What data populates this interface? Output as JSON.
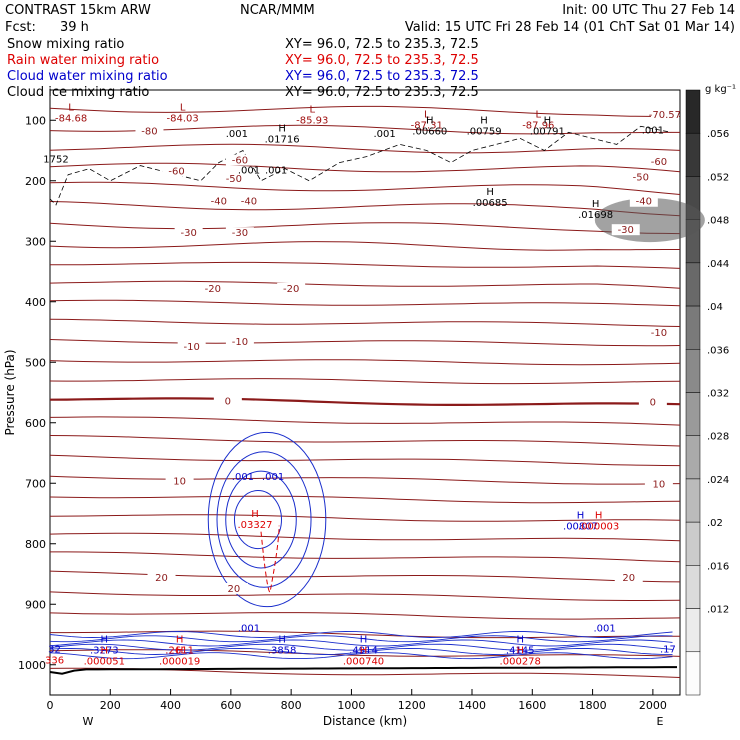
{
  "header": {
    "model": "CONTRAST 15km ARW",
    "center": "NCAR/MMM",
    "init": "Init: 00 UTC Thu 27 Feb 14",
    "fcst_label": "Fcst:",
    "fcst_value": "39 h",
    "valid": "Valid: 15 UTC Fri 28 Feb 14 (01 ChT Sat 01 Mar 14)"
  },
  "fields": [
    {
      "label": "Snow mixing ratio",
      "xy": "XY=   96.0, 72.5 to 235.3, 72.5",
      "color": "#000000"
    },
    {
      "label": "Rain water mixing ratio",
      "xy": "XY=   96.0, 72.5 to 235.3, 72.5",
      "color": "#dd0000"
    },
    {
      "label": "Cloud water mixing ratio",
      "xy": "XY=   96.0, 72.5 to 235.3, 72.5",
      "color": "#0000cc"
    },
    {
      "label": "Cloud ice mixing ratio",
      "xy": "XY=   96.0, 72.5 to 235.3, 72.5",
      "color": "#000000"
    }
  ],
  "colorbar": {
    "unit": "g kg⁻¹",
    "ticks": [
      ".056",
      ".052",
      ".048",
      ".044",
      ".04",
      ".036",
      ".032",
      ".028",
      ".024",
      ".02",
      ".016",
      ".012"
    ]
  },
  "chart_data": {
    "type": "cross-section contour",
    "xlabel": "Distance (km)",
    "ylabel": "Pressure (hPa)",
    "xlim": [
      0,
      2090
    ],
    "ylim": [
      1050,
      50
    ],
    "x_ticks": [
      0,
      200,
      400,
      600,
      800,
      1000,
      1200,
      1400,
      1600,
      1800,
      2000
    ],
    "y_ticks": [
      100,
      200,
      300,
      400,
      500,
      600,
      700,
      800,
      900,
      1000
    ],
    "x_end_labels": {
      "left": "W",
      "right": "E"
    },
    "temperature_contours": {
      "units": "C",
      "labels": [
        {
          "text": "-80",
          "x": 330,
          "p": 122
        },
        {
          "text": "-70.57",
          "x": 2040,
          "p": 95
        },
        {
          "text": "-60",
          "x": 420,
          "p": 188
        },
        {
          "text": "-60",
          "x": 630,
          "p": 170
        },
        {
          "text": "-60",
          "x": 2020,
          "p": 172
        },
        {
          "text": "-50",
          "x": 610,
          "p": 200
        },
        {
          "text": "-50",
          "x": 1960,
          "p": 198
        },
        {
          "text": "-40",
          "x": 560,
          "p": 238
        },
        {
          "text": "-40",
          "x": 660,
          "p": 238
        },
        {
          "text": "-40",
          "x": 1970,
          "p": 238
        },
        {
          "text": "-30",
          "x": 460,
          "p": 290
        },
        {
          "text": "-30",
          "x": 630,
          "p": 290
        },
        {
          "text": "-30",
          "x": 1910,
          "p": 285
        },
        {
          "text": "-20",
          "x": 540,
          "p": 382
        },
        {
          "text": "-20",
          "x": 800,
          "p": 382
        },
        {
          "text": "-10",
          "x": 470,
          "p": 478
        },
        {
          "text": "-10",
          "x": 630,
          "p": 470
        },
        {
          "text": "-10",
          "x": 2020,
          "p": 455
        },
        {
          "text": "0",
          "x": 590,
          "p": 568
        },
        {
          "text": "0",
          "x": 2000,
          "p": 570
        },
        {
          "text": "10",
          "x": 430,
          "p": 700
        },
        {
          "text": "10",
          "x": 2020,
          "p": 705
        },
        {
          "text": "20",
          "x": 370,
          "p": 860
        },
        {
          "text": "20",
          "x": 610,
          "p": 878
        },
        {
          "text": "20",
          "x": 1920,
          "p": 860
        }
      ]
    },
    "extrema": [
      {
        "kind": "L",
        "value": "-84.68",
        "x": 70,
        "p": 100,
        "color": "#a01010"
      },
      {
        "kind": "L",
        "value": "-84.03",
        "x": 440,
        "p": 100,
        "color": "#a01010"
      },
      {
        "kind": "L",
        "value": "-85.93",
        "x": 870,
        "p": 104,
        "color": "#a01010"
      },
      {
        "kind": "L",
        "value": "-87.31",
        "x": 1250,
        "p": 112,
        "color": "#a01010"
      },
      {
        "kind": "L",
        "value": "-87.96",
        "x": 1620,
        "p": 112,
        "color": "#a01010"
      },
      {
        "kind": "H",
        "value": ".01716",
        "x": 770,
        "p": 135,
        "color": "#000"
      },
      {
        "kind": "H",
        "value": ".00660",
        "x": 1260,
        "p": 122,
        "color": "#000"
      },
      {
        "kind": "H",
        "value": ".00759",
        "x": 1440,
        "p": 122,
        "color": "#000"
      },
      {
        "kind": "H",
        "value": ".00791",
        "x": 1650,
        "p": 122,
        "color": "#000"
      },
      {
        "kind": "H",
        "value": ".00685",
        "x": 1460,
        "p": 240,
        "color": "#000"
      },
      {
        "kind": "H",
        "value": ".01698",
        "x": 1810,
        "p": 260,
        "color": "#000"
      },
      {
        "kind": "H",
        "value": ".03327",
        "x": 680,
        "p": 772,
        "color": "#dd0000"
      },
      {
        "kind": "H",
        "value": ".00807",
        "x": 1760,
        "p": 775,
        "color": "#0000cc"
      },
      {
        "kind": "H",
        "value": ".000003",
        "x": 1820,
        "p": 775,
        "color": "#dd0000"
      },
      {
        "kind": "H",
        "value": ".3273",
        "x": 180,
        "p": 980,
        "color": "#0000cc"
      },
      {
        "kind": "H",
        "value": ".2611",
        "x": 430,
        "p": 980,
        "color": "#dd0000"
      },
      {
        "kind": "H",
        "value": ".3858",
        "x": 770,
        "p": 980,
        "color": "#0000cc"
      },
      {
        "kind": "H",
        "value": ".4914",
        "x": 1040,
        "p": 980,
        "color": "#0000cc"
      },
      {
        "kind": "H",
        "value": ".4145",
        "x": 1560,
        "p": 980,
        "color": "#0000cc"
      },
      {
        "kind": "H",
        "value": ".000051",
        "x": 180,
        "p": 998,
        "color": "#dd0000"
      },
      {
        "kind": "H",
        "value": ".000019",
        "x": 430,
        "p": 998,
        "color": "#dd0000"
      },
      {
        "kind": "H",
        "value": ".000740",
        "x": 1040,
        "p": 998,
        "color": "#dd0000"
      },
      {
        "kind": "H",
        "value": ".000278",
        "x": 1560,
        "p": 998,
        "color": "#dd0000"
      }
    ],
    "cloud_ice_labels": [
      {
        "text": ".001",
        "x": 620,
        "p": 128
      },
      {
        "text": ".001",
        "x": 1110,
        "p": 128
      },
      {
        "text": ".001",
        "x": 660,
        "p": 188
      },
      {
        "text": ".001",
        "x": 750,
        "p": 188
      },
      {
        "text": ".001",
        "x": 2000,
        "p": 122
      }
    ],
    "cloud_water_labels": [
      {
        "text": ".001",
        "x": 640,
        "p": 695
      },
      {
        "text": ".001",
        "x": 740,
        "p": 695
      },
      {
        "text": ".001",
        "x": 660,
        "p": 945
      },
      {
        "text": ".001",
        "x": 1840,
        "p": 945
      }
    ],
    "edge_labels": [
      {
        "text": "1752",
        "x": 20,
        "p": 170,
        "color": "#000"
      },
      {
        "text": "32",
        "x": 15,
        "p": 980,
        "color": "#0000cc"
      },
      {
        "text": "336",
        "x": 15,
        "p": 998,
        "color": "#dd0000"
      },
      {
        "text": ".17",
        "x": 2050,
        "p": 980,
        "color": "#0000cc"
      }
    ]
  }
}
